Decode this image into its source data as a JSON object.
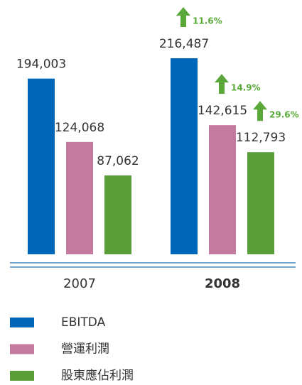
{
  "chart_data": {
    "type": "bar",
    "categories": [
      "2007",
      "2008"
    ],
    "series": [
      {
        "name": "EBITDA",
        "color": "#0066b8",
        "values": [
          194003,
          216487
        ],
        "value_labels": [
          "194,003",
          "216,487"
        ],
        "change": "11.6%"
      },
      {
        "name": "營運利潤",
        "color": "#c47a9e",
        "values": [
          124068,
          142615
        ],
        "value_labels": [
          "124,068",
          "142,615"
        ],
        "change": "14.9%"
      },
      {
        "name": "股東應佔利潤",
        "color": "#5a9e3a",
        "values": [
          87062,
          112793
        ],
        "value_labels": [
          "87,062",
          "112,793"
        ],
        "change": "29.6%"
      }
    ]
  }
}
